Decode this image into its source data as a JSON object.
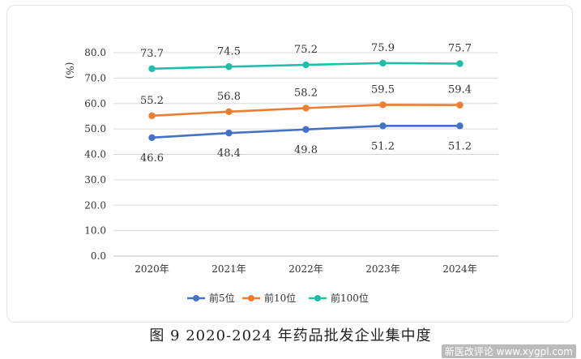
{
  "caption": "图 9   2020-2024 年药品批发企业集中度",
  "watermark": "新医改评论 www.xygpl.com",
  "colors": {
    "grid": "#d9d9d9",
    "axis": "#bfbfbf"
  },
  "chart_data": {
    "type": "line",
    "title": "2020-2024 年药品批发企业集中度",
    "xlabel": "",
    "ylabel": "(%)",
    "categories": [
      "2020年",
      "2021年",
      "2022年",
      "2023年",
      "2024年"
    ],
    "ylim": [
      0,
      80
    ],
    "yticks": [
      "0.0",
      "10.0",
      "20.0",
      "30.0",
      "40.0",
      "50.0",
      "60.0",
      "70.0",
      "80.0"
    ],
    "grid": true,
    "legend_position": "bottom",
    "series": [
      {
        "name": "前5位",
        "color": "#4472c4",
        "values": [
          46.6,
          48.4,
          49.8,
          51.2,
          51.2
        ],
        "labels": [
          "46.6",
          "48.4",
          "49.8",
          "51.2",
          "51.2"
        ],
        "label_position": "below"
      },
      {
        "name": "前10位",
        "color": "#ed7d31",
        "values": [
          55.2,
          56.8,
          58.2,
          59.5,
          59.4
        ],
        "labels": [
          "55.2",
          "56.8",
          "58.2",
          "59.5",
          "59.4"
        ],
        "label_position": "above"
      },
      {
        "name": "前100位",
        "color": "#1ebfa8",
        "values": [
          73.7,
          74.5,
          75.2,
          75.9,
          75.7
        ],
        "labels": [
          "73.7",
          "74.5",
          "75.2",
          "75.9",
          "75.7"
        ],
        "label_position": "above"
      }
    ]
  }
}
